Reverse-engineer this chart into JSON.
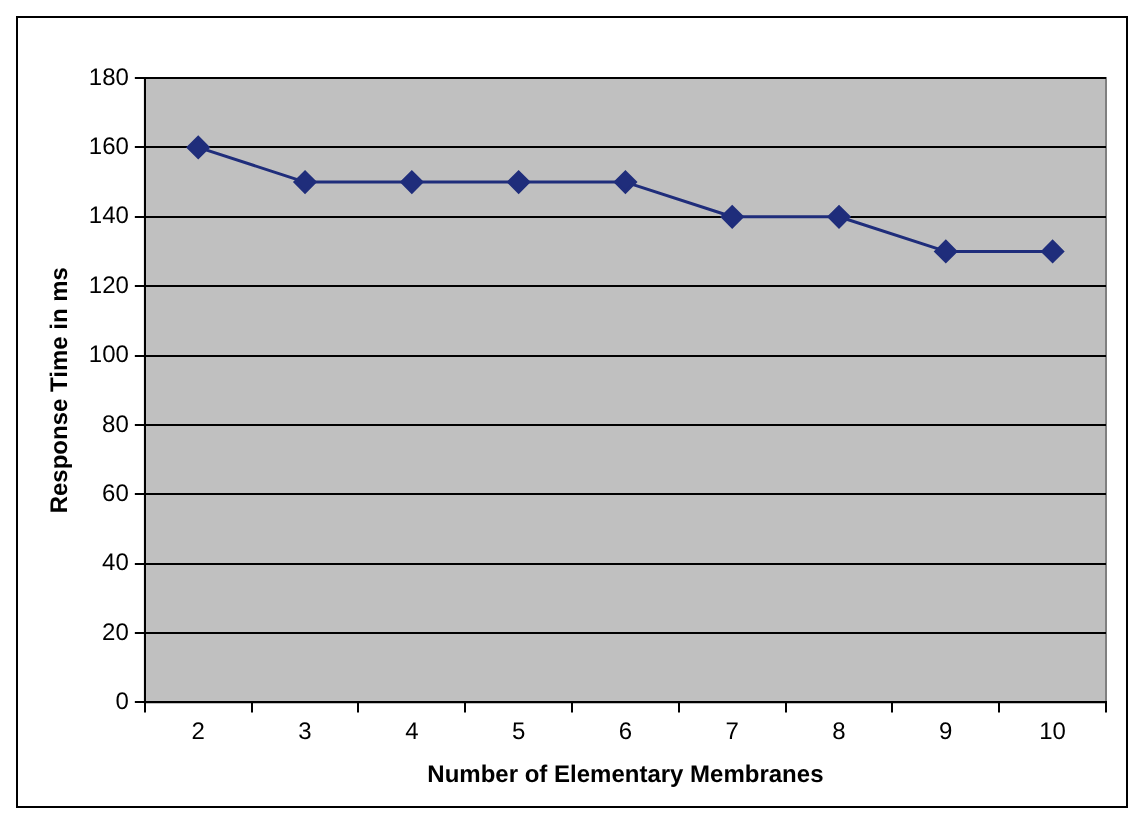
{
  "chart_data": {
    "type": "line",
    "xlabel": "Number of Elementary Membranes",
    "ylabel": "Response Time in ms",
    "categories": [
      "2",
      "3",
      "4",
      "5",
      "6",
      "7",
      "8",
      "9",
      "10"
    ],
    "series": [
      {
        "color": "#1f2d7b",
        "values": [
          160,
          150,
          150,
          150,
          150,
          140,
          140,
          130,
          130
        ]
      }
    ],
    "ylim": [
      0,
      180
    ],
    "yticks": [
      0,
      20,
      40,
      60,
      80,
      100,
      120,
      140,
      160,
      180
    ],
    "grid": "y",
    "legend": false,
    "marker": "diamond",
    "line_style": "solid"
  }
}
